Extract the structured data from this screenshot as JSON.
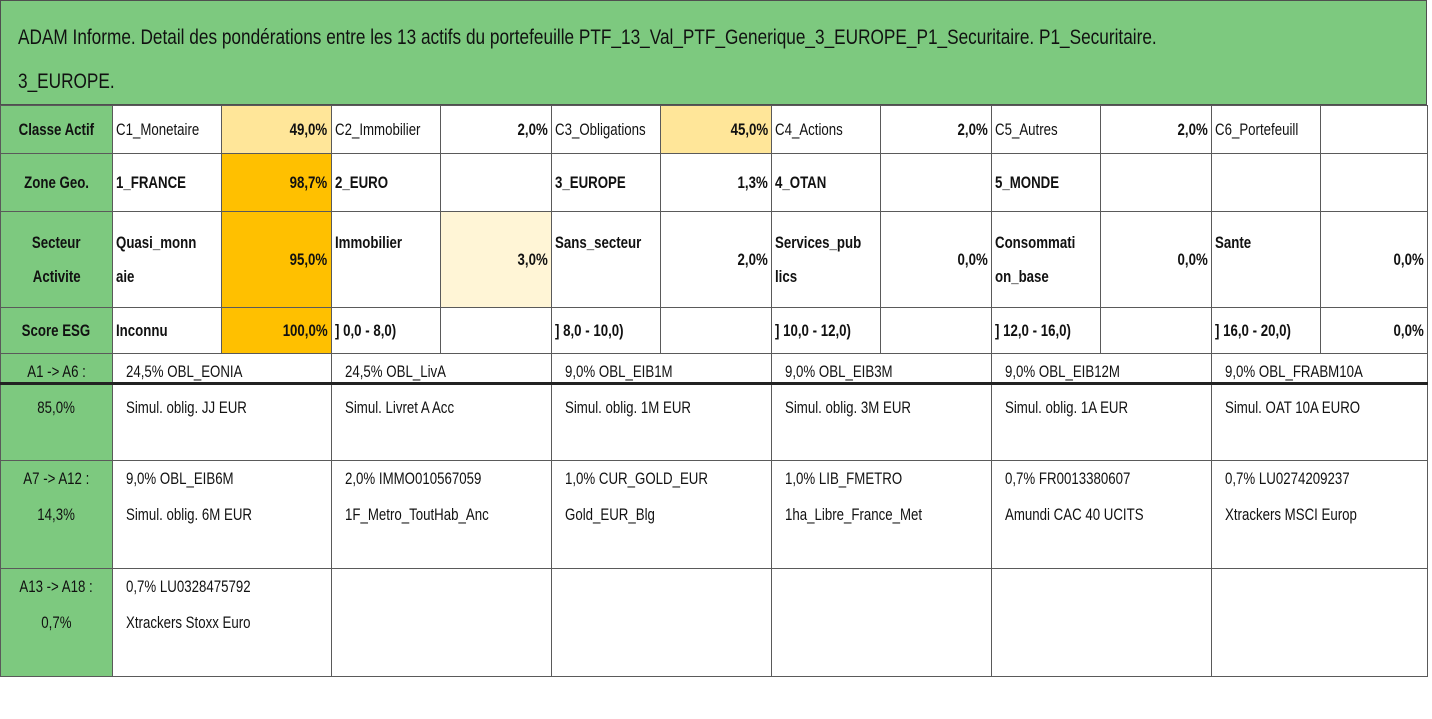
{
  "title": {
    "line1": "ADAM Informe. Detail des pondérations entre les 13 actifs du portefeuille PTF_13_Val_PTF_Generique_3_EUROPE_P1_Securitaire. P1_Securitaire.",
    "line2": "3_EUROPE."
  },
  "classe_actif": {
    "header": "Classe Actif",
    "cells": [
      {
        "label": "C1_Monetaire",
        "pct": "49,0%"
      },
      {
        "label": "C2_Immobilier",
        "pct": "2,0%"
      },
      {
        "label": "C3_Obligations",
        "pct": "45,0%"
      },
      {
        "label": "C4_Actions",
        "pct": "2,0%"
      },
      {
        "label": "C5_Autres",
        "pct": "2,0%"
      },
      {
        "label": "C6_Portefeuill",
        "pct": ""
      }
    ]
  },
  "zone_geo": {
    "header": "Zone Geo.",
    "cells": [
      {
        "label": "1_FRANCE",
        "pct": "98,7%"
      },
      {
        "label": "2_EURO",
        "pct": ""
      },
      {
        "label": "3_EUROPE",
        "pct": "1,3%"
      },
      {
        "label": "4_OTAN",
        "pct": ""
      },
      {
        "label": "5_MONDE",
        "pct": ""
      },
      {
        "label": "",
        "pct": ""
      }
    ]
  },
  "secteur": {
    "header_line1": "Secteur",
    "header_line2": "Activite",
    "cells": [
      {
        "label1": "Quasi_monn",
        "label2": "aie",
        "pct": "95,0%"
      },
      {
        "label1": "Immobilier",
        "label2": "",
        "pct": "3,0%"
      },
      {
        "label1": "Sans_secteur",
        "label2": "",
        "pct": "2,0%"
      },
      {
        "label1": "Services_pub",
        "label2": "lics",
        "pct": "0,0%"
      },
      {
        "label1": "Consommati",
        "label2": "on_base",
        "pct": "0,0%"
      },
      {
        "label1": "Sante",
        "label2": "",
        "pct": "0,0%"
      }
    ]
  },
  "score_esg": {
    "header": "Score ESG",
    "cells": [
      {
        "label": "Inconnu",
        "pct": "100,0%"
      },
      {
        "label": "] 0,0 - 8,0)",
        "pct": ""
      },
      {
        "label": "] 8,0 - 10,0)",
        "pct": ""
      },
      {
        "label": "] 10,0 - 12,0)",
        "pct": ""
      },
      {
        "label": "] 12,0 - 16,0)",
        "pct": ""
      },
      {
        "label": "] 16,0 - 20,0)",
        "pct": "0,0%"
      }
    ]
  },
  "asset_rows": [
    {
      "label1": "A1 -> A6 :",
      "label2": "85,0%",
      "assets": [
        {
          "line1": "24,5% OBL_EONIA",
          "line2": "Simul. oblig. JJ EUR"
        },
        {
          "line1": "24,5% OBL_LivA",
          "line2": "Simul. Livret A Acc"
        },
        {
          "line1": "9,0% OBL_EIB1M",
          "line2": "Simul. oblig. 1M EUR"
        },
        {
          "line1": "9,0% OBL_EIB3M",
          "line2": "Simul. oblig. 3M EUR"
        },
        {
          "line1": "9,0% OBL_EIB12M",
          "line2": "Simul. oblig. 1A EUR"
        },
        {
          "line1": "9,0% OBL_FRABM10A",
          "line2": "Simul. OAT 10A EURO"
        }
      ]
    },
    {
      "label1": "A7 -> A12 :",
      "label2": "14,3%",
      "assets": [
        {
          "line1": "9,0% OBL_EIB6M",
          "line2": "Simul. oblig. 6M EUR"
        },
        {
          "line1": "2,0% IMMO010567059",
          "line2": "1F_Metro_ToutHab_Anc"
        },
        {
          "line1": "1,0% CUR_GOLD_EUR",
          "line2": "Gold_EUR_Blg"
        },
        {
          "line1": "1,0% LIB_FMETRO",
          "line2": "1ha_Libre_France_Met"
        },
        {
          "line1": "0,7% FR0013380607",
          "line2": "Amundi CAC 40 UCITS"
        },
        {
          "line1": "0,7% LU0274209237",
          "line2": "Xtrackers MSCI Europ"
        }
      ]
    },
    {
      "label1": "A13 -> A18 :",
      "label2": "0,7%",
      "assets": [
        {
          "line1": "0,7% LU0328475792",
          "line2": "Xtrackers Stoxx Euro"
        },
        {
          "line1": "",
          "line2": ""
        },
        {
          "line1": "",
          "line2": ""
        },
        {
          "line1": "",
          "line2": ""
        },
        {
          "line1": "",
          "line2": ""
        },
        {
          "line1": "",
          "line2": ""
        }
      ]
    }
  ],
  "colors": {
    "header_green": "#7dc97f",
    "highlight_light": "#ffe699",
    "highlight_strong": "#ffc000",
    "highlight_faint": "#fff5d6"
  }
}
